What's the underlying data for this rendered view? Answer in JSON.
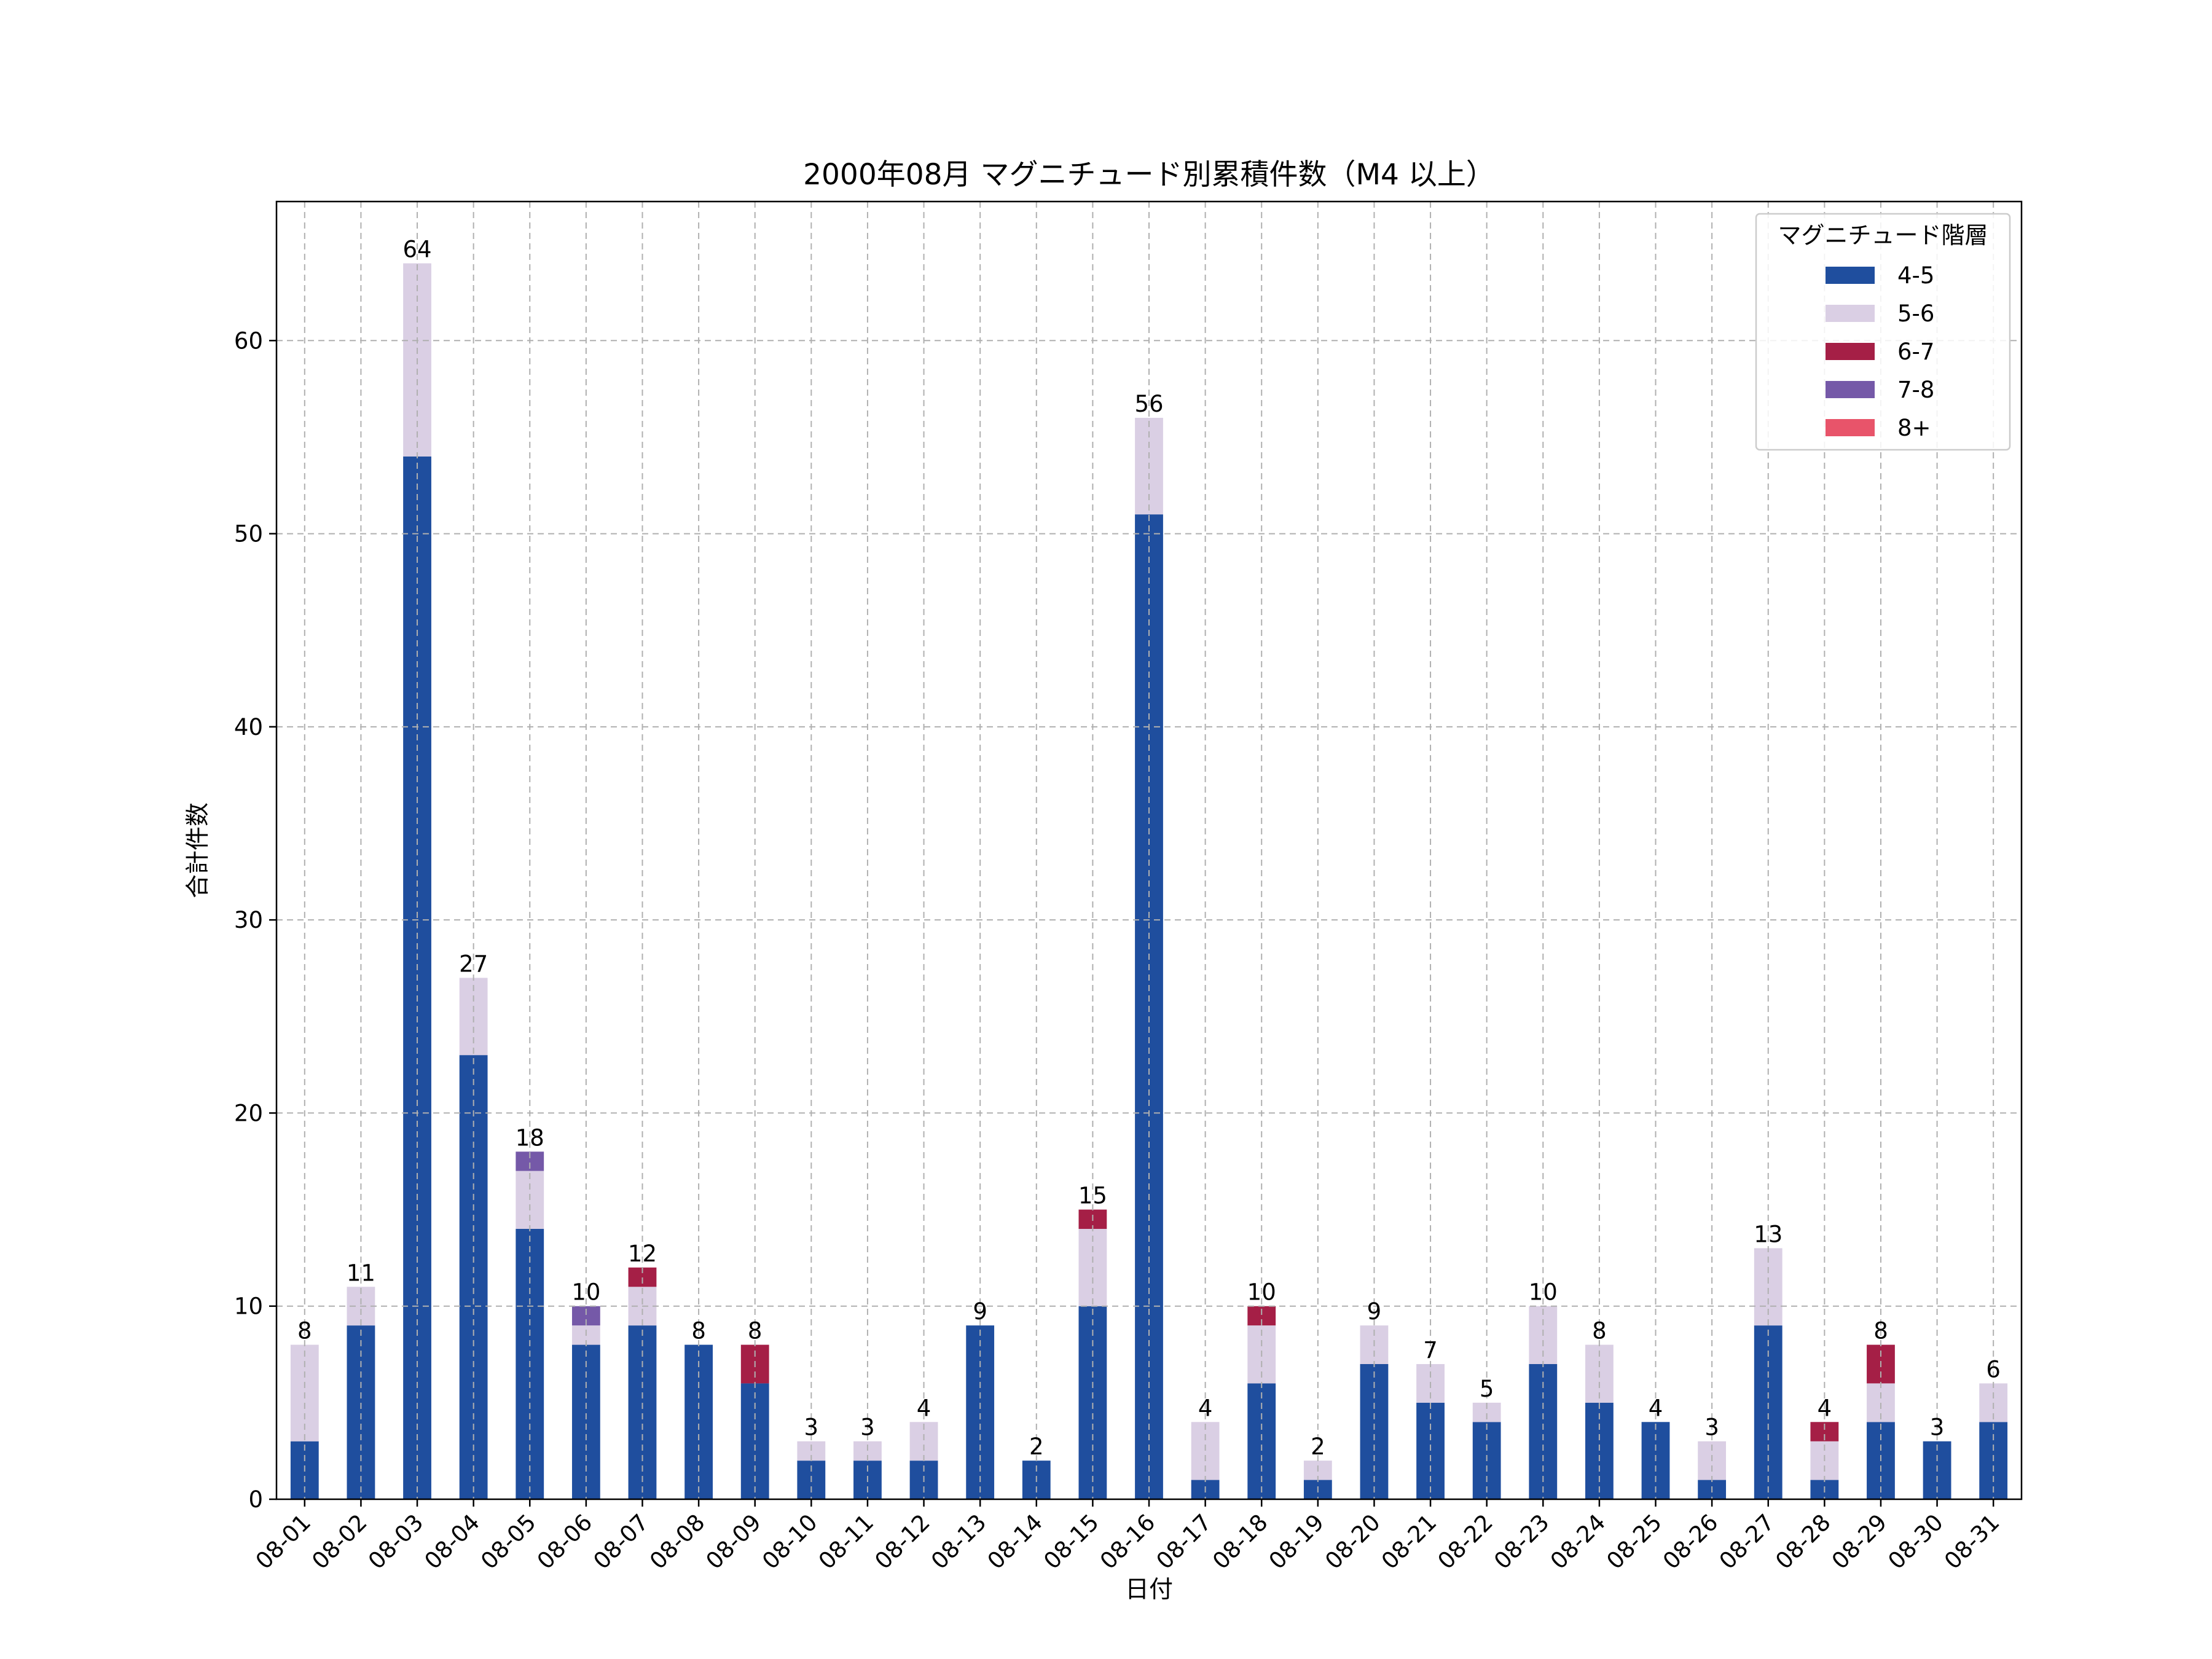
{
  "chart_data": {
    "type": "bar",
    "stacked": true,
    "title": "2000年08月 マグニチュード別累積件数（M4 以上）",
    "xlabel": "日付",
    "ylabel": "合計件数",
    "ylim": [
      0,
      67.2
    ],
    "yticks": [
      0,
      10,
      20,
      30,
      40,
      50,
      60
    ],
    "grid": true,
    "legend": {
      "title": "マグニチュード階層",
      "position": "top-right"
    },
    "categories": [
      "08-01",
      "08-02",
      "08-03",
      "08-04",
      "08-05",
      "08-06",
      "08-07",
      "08-08",
      "08-09",
      "08-10",
      "08-11",
      "08-12",
      "08-13",
      "08-14",
      "08-15",
      "08-16",
      "08-17",
      "08-18",
      "08-19",
      "08-20",
      "08-21",
      "08-22",
      "08-23",
      "08-24",
      "08-25",
      "08-26",
      "08-27",
      "08-28",
      "08-29",
      "08-30",
      "08-31"
    ],
    "series": [
      {
        "name": "4-5",
        "color": "#1f4e9e",
        "values": [
          3,
          9,
          54,
          23,
          14,
          8,
          9,
          8,
          6,
          2,
          2,
          2,
          9,
          2,
          10,
          51,
          1,
          6,
          1,
          7,
          5,
          4,
          7,
          5,
          4,
          1,
          9,
          1,
          4,
          3,
          4
        ]
      },
      {
        "name": "5-6",
        "color": "#dacfe4",
        "values": [
          5,
          2,
          10,
          4,
          3,
          1,
          2,
          0,
          0,
          1,
          1,
          2,
          0,
          0,
          4,
          5,
          3,
          3,
          1,
          2,
          2,
          1,
          3,
          3,
          0,
          2,
          4,
          2,
          2,
          0,
          2
        ]
      },
      {
        "name": "6-7",
        "color": "#a51f46",
        "values": [
          0,
          0,
          0,
          0,
          0,
          0,
          1,
          0,
          2,
          0,
          0,
          0,
          0,
          0,
          1,
          0,
          0,
          1,
          0,
          0,
          0,
          0,
          0,
          0,
          0,
          0,
          0,
          1,
          2,
          0,
          0
        ]
      },
      {
        "name": "7-8",
        "color": "#7559a8",
        "values": [
          0,
          0,
          0,
          0,
          1,
          1,
          0,
          0,
          0,
          0,
          0,
          0,
          0,
          0,
          0,
          0,
          0,
          0,
          0,
          0,
          0,
          0,
          0,
          0,
          0,
          0,
          0,
          0,
          0,
          0,
          0
        ]
      },
      {
        "name": "8+",
        "color": "#e8546a",
        "values": [
          0,
          0,
          0,
          0,
          0,
          0,
          0,
          0,
          0,
          0,
          0,
          0,
          0,
          0,
          0,
          0,
          0,
          0,
          0,
          0,
          0,
          0,
          0,
          0,
          0,
          0,
          0,
          0,
          0,
          0,
          0
        ]
      }
    ],
    "totals": [
      8,
      11,
      64,
      27,
      18,
      10,
      12,
      8,
      8,
      3,
      3,
      4,
      9,
      2,
      15,
      56,
      4,
      10,
      2,
      9,
      7,
      5,
      10,
      8,
      4,
      3,
      13,
      4,
      8,
      3,
      6
    ]
  }
}
